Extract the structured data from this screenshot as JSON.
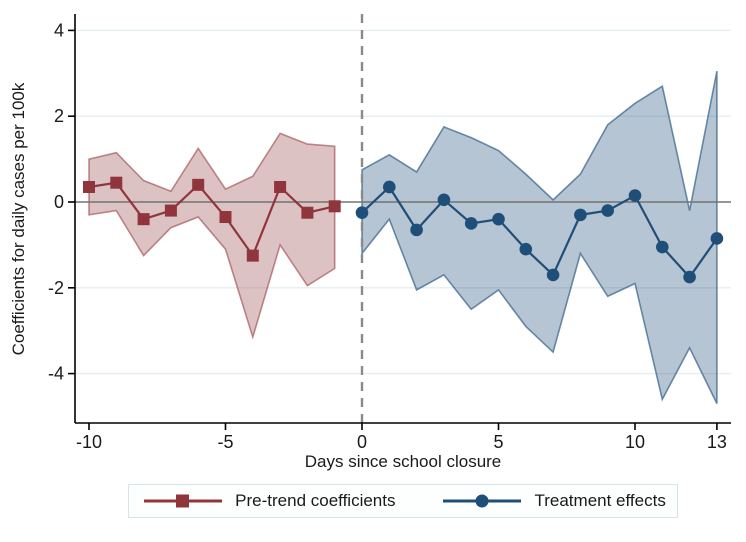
{
  "axis": {
    "ylabel": "Coefficients for daily cases per 100k",
    "xlabel": "Days since school closure",
    "y_tick_labels": [
      "4",
      "2",
      "0",
      "-2",
      "-4"
    ],
    "x_tick_labels": [
      "-10",
      "-5",
      "0",
      "5",
      "10",
      "13"
    ]
  },
  "legend": {
    "items": [
      {
        "label": "Pre-trend coefficients",
        "marker": "square",
        "color": "#90353b"
      },
      {
        "label": "Treatment effects",
        "marker": "circle",
        "color": "#1f4e79"
      }
    ]
  },
  "colors": {
    "pretrend_line": "#90353b",
    "pretrend_band_fill": "rgba(144,53,59,0.30)",
    "pretrend_band_stroke": "rgba(144,53,59,0.55)",
    "treatment_line": "#1f4e79",
    "treatment_band_fill": "rgba(31,78,121,0.33)",
    "treatment_band_stroke": "rgba(31,78,121,0.62)",
    "zero_line": "#737373",
    "dashed_line": "#8a8a8a",
    "gridline": "#e6eef2",
    "axis_line": "#000000",
    "text": "#1a1a1a"
  },
  "chart_data": {
    "type": "line",
    "title": "",
    "xlabel": "Days since school closure",
    "ylabel": "Coefficients for daily cases per 100k",
    "xlim": [
      -10.5,
      13.5
    ],
    "ylim": [
      -5.1,
      4.4
    ],
    "x_ticks": [
      -10,
      -5,
      0,
      5,
      10,
      13
    ],
    "y_ticks": [
      4,
      2,
      0,
      -2,
      -4
    ],
    "grid": "horizontal-light",
    "reference_lines": {
      "horizontal_solid_y": 0,
      "vertical_dashed_x": 0
    },
    "legend_position": "bottom-center",
    "series": [
      {
        "name": "Pre-trend coefficients",
        "marker": "square",
        "color": "#90353b",
        "x": [
          -10,
          -9,
          -8,
          -7,
          -6,
          -5,
          -4,
          -3,
          -2,
          -1
        ],
        "y": [
          0.35,
          0.45,
          -0.4,
          -0.2,
          0.4,
          -0.35,
          -1.25,
          0.35,
          -0.25,
          -0.1
        ],
        "ci_upper": [
          1.0,
          1.15,
          0.5,
          0.25,
          1.25,
          0.3,
          0.6,
          1.6,
          1.35,
          1.3
        ],
        "ci_lower": [
          -0.3,
          -0.2,
          -1.25,
          -0.6,
          -0.35,
          -1.1,
          -3.15,
          -1.0,
          -1.95,
          -1.55
        ]
      },
      {
        "name": "Treatment effects",
        "marker": "circle",
        "color": "#1f4e79",
        "x": [
          0,
          1,
          2,
          3,
          4,
          5,
          6,
          7,
          8,
          9,
          10,
          11,
          12,
          13
        ],
        "y": [
          -0.25,
          0.35,
          -0.65,
          0.05,
          -0.5,
          -0.4,
          -1.1,
          -1.7,
          -0.3,
          -0.2,
          0.15,
          -1.05,
          -1.75,
          -0.85
        ],
        "ci_upper": [
          0.75,
          1.1,
          0.7,
          1.75,
          1.5,
          1.2,
          0.65,
          0.05,
          0.65,
          1.8,
          2.3,
          2.7,
          -0.2,
          3.05
        ],
        "ci_lower": [
          -1.2,
          -0.4,
          -2.05,
          -1.7,
          -2.5,
          -2.05,
          -2.9,
          -3.5,
          -1.2,
          -2.2,
          -1.9,
          -4.6,
          -3.4,
          -4.7
        ]
      }
    ]
  }
}
